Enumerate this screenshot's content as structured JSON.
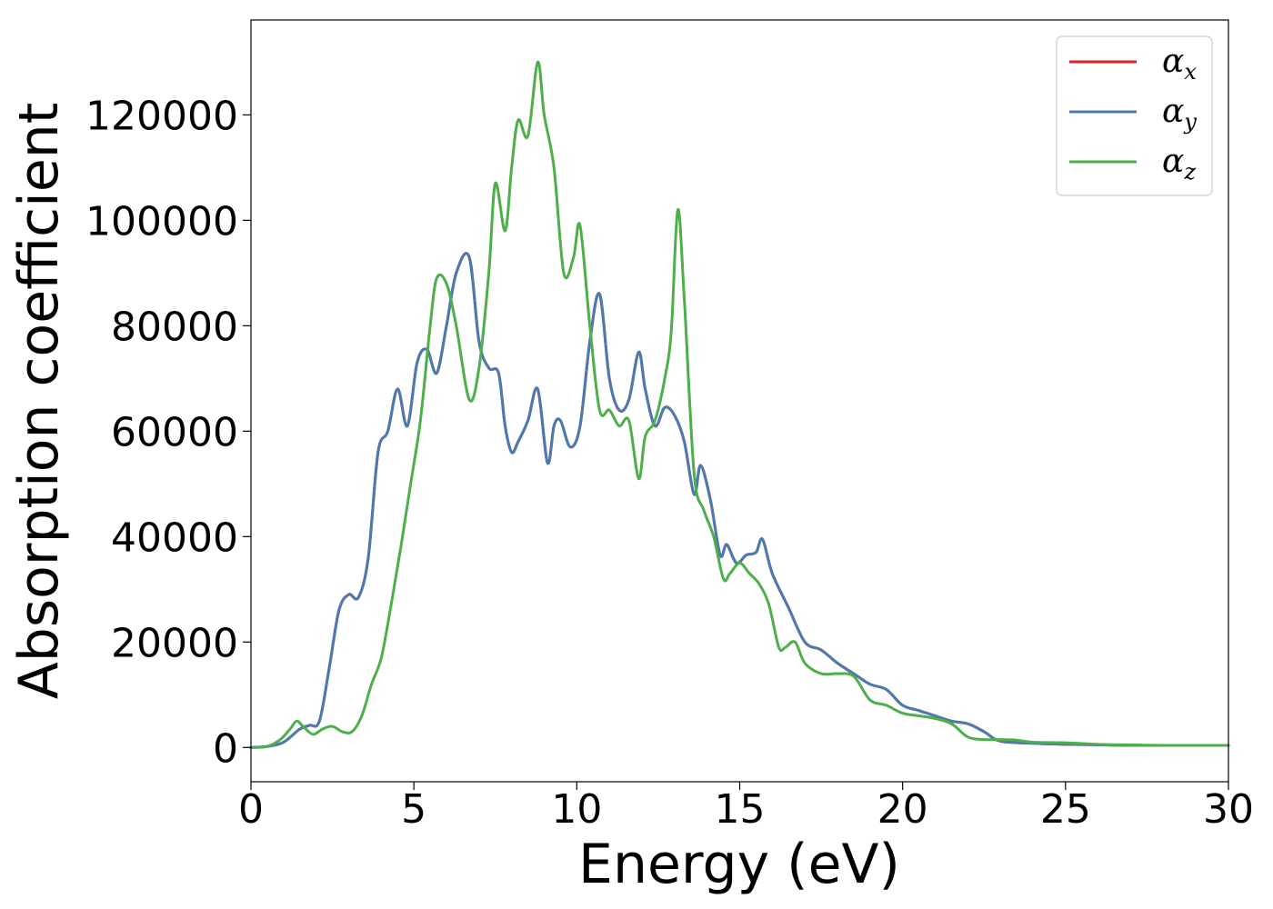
{
  "chart_data": {
    "type": "line",
    "xlabel": "Energy (eV)",
    "ylabel": "Absorption coefficient",
    "xlim": [
      0,
      30
    ],
    "ylim": [
      -6500,
      138000
    ],
    "xticks": [
      0,
      5,
      10,
      15,
      20,
      25,
      30
    ],
    "yticks": [
      0,
      20000,
      40000,
      60000,
      80000,
      100000,
      120000
    ],
    "xtick_labels": [
      "0",
      "5",
      "10",
      "15",
      "20",
      "25",
      "30"
    ],
    "ytick_labels": [
      "0",
      "20000",
      "40000",
      "60000",
      "80000",
      "100000",
      "120000"
    ],
    "grid": false,
    "legend_position": "upper-right",
    "series": [
      {
        "name": "α",
        "subscript": "x",
        "color": "#e41a1c",
        "x": [
          0,
          0.5,
          1.0,
          1.5,
          1.8,
          2.1,
          2.4,
          2.7,
          3.0,
          3.3,
          3.6,
          3.9,
          4.2,
          4.5,
          4.8,
          5.1,
          5.4,
          5.7,
          6.0,
          6.3,
          6.7,
          7.0,
          7.3,
          7.6,
          7.8,
          8.0,
          8.2,
          8.5,
          8.8,
          9.1,
          9.3,
          9.5,
          9.8,
          10.1,
          10.4,
          10.7,
          11.0,
          11.3,
          11.6,
          11.9,
          12.1,
          12.4,
          12.7,
          13.0,
          13.3,
          13.6,
          13.8,
          14.1,
          14.4,
          14.6,
          14.9,
          15.2,
          15.5,
          15.7,
          16.0,
          16.5,
          17.0,
          17.5,
          18.0,
          18.5,
          19.0,
          19.5,
          20.0,
          20.5,
          21.0,
          21.5,
          22.0,
          22.5,
          23.0,
          24.0,
          25.0,
          26.0,
          27.0,
          28.0,
          29.0,
          30.0
        ],
        "values": [
          0,
          200,
          1000,
          3500,
          4200,
          5000,
          15000,
          26000,
          29000,
          28500,
          36000,
          56000,
          60000,
          68000,
          61000,
          73000,
          75500,
          71000,
          80000,
          90000,
          93000,
          77000,
          72000,
          71000,
          61000,
          56000,
          58000,
          62000,
          68000,
          54000,
          61000,
          62000,
          57000,
          61000,
          77000,
          86000,
          70000,
          64000,
          66000,
          75000,
          68000,
          61000,
          64500,
          63000,
          58000,
          48000,
          53500,
          47000,
          36500,
          38500,
          35000,
          36500,
          37000,
          39500,
          33000,
          26500,
          20000,
          18500,
          16000,
          14000,
          12000,
          11000,
          8000,
          7000,
          6000,
          5000,
          4500,
          3000,
          1200,
          800,
          600,
          500,
          400,
          400,
          400,
          400
        ]
      },
      {
        "name": "α",
        "subscript": "y",
        "color": "#4a7bb0",
        "x": [
          0,
          0.5,
          1.0,
          1.5,
          1.8,
          2.1,
          2.4,
          2.7,
          3.0,
          3.3,
          3.6,
          3.9,
          4.2,
          4.5,
          4.8,
          5.1,
          5.4,
          5.7,
          6.0,
          6.3,
          6.7,
          7.0,
          7.3,
          7.6,
          7.8,
          8.0,
          8.2,
          8.5,
          8.8,
          9.1,
          9.3,
          9.5,
          9.8,
          10.1,
          10.4,
          10.7,
          11.0,
          11.3,
          11.6,
          11.9,
          12.1,
          12.4,
          12.7,
          13.0,
          13.3,
          13.6,
          13.8,
          14.1,
          14.4,
          14.6,
          14.9,
          15.2,
          15.5,
          15.7,
          16.0,
          16.5,
          17.0,
          17.5,
          18.0,
          18.5,
          19.0,
          19.5,
          20.0,
          20.5,
          21.0,
          21.5,
          22.0,
          22.5,
          23.0,
          24.0,
          25.0,
          26.0,
          27.0,
          28.0,
          29.0,
          30.0
        ],
        "values": [
          0,
          200,
          1000,
          3500,
          4200,
          5000,
          15000,
          26000,
          29000,
          28500,
          36000,
          56000,
          60000,
          68000,
          61000,
          73000,
          75500,
          71000,
          80000,
          90000,
          93000,
          77000,
          72000,
          71000,
          61000,
          56000,
          58000,
          62000,
          68000,
          54000,
          61000,
          62000,
          57000,
          61000,
          77000,
          86000,
          70000,
          64000,
          66000,
          75000,
          68000,
          61000,
          64500,
          63000,
          58000,
          48000,
          53500,
          47000,
          36500,
          38500,
          35000,
          36500,
          37000,
          39500,
          33000,
          26500,
          20000,
          18500,
          16000,
          14000,
          12000,
          11000,
          8000,
          7000,
          6000,
          5000,
          4500,
          3000,
          1200,
          800,
          600,
          500,
          400,
          400,
          400,
          400
        ]
      },
      {
        "name": "α",
        "subscript": "z",
        "color": "#4daf4a",
        "x": [
          0,
          0.5,
          0.9,
          1.2,
          1.4,
          1.6,
          1.9,
          2.2,
          2.5,
          2.8,
          3.1,
          3.4,
          3.7,
          4.0,
          4.3,
          4.6,
          4.9,
          5.2,
          5.5,
          5.7,
          6.0,
          6.3,
          6.7,
          7.0,
          7.3,
          7.5,
          7.8,
          8.0,
          8.2,
          8.5,
          8.8,
          9.0,
          9.3,
          9.6,
          9.9,
          10.1,
          10.4,
          10.7,
          11.0,
          11.3,
          11.6,
          11.9,
          12.1,
          12.4,
          12.7,
          12.9,
          13.1,
          13.3,
          13.6,
          13.9,
          14.2,
          14.5,
          14.7,
          15.0,
          15.3,
          15.6,
          15.9,
          16.2,
          16.4,
          16.7,
          17.0,
          17.5,
          18.0,
          18.5,
          19.0,
          19.5,
          20.0,
          20.5,
          21.0,
          21.5,
          22.0,
          22.5,
          23.0,
          23.5,
          24.0,
          25.0,
          26.0,
          27.0,
          28.0,
          29.0,
          30.0
        ],
        "values": [
          0,
          200,
          1500,
          3500,
          5000,
          4000,
          2500,
          3500,
          4000,
          3000,
          3000,
          6000,
          12000,
          17000,
          27000,
          38000,
          50000,
          62000,
          80000,
          89000,
          88000,
          80000,
          66000,
          72000,
          90000,
          107000,
          98000,
          110000,
          119000,
          116000,
          130000,
          120000,
          110000,
          90000,
          93000,
          99000,
          80000,
          64000,
          64000,
          61000,
          62000,
          51000,
          59000,
          62000,
          70000,
          79000,
          102000,
          85000,
          52000,
          45000,
          40000,
          32000,
          33000,
          35000,
          33000,
          31000,
          27000,
          19000,
          19000,
          20000,
          16000,
          14000,
          14000,
          13500,
          9000,
          8000,
          6500,
          6000,
          5500,
          4500,
          2000,
          1500,
          1500,
          1400,
          1000,
          900,
          600,
          500,
          400,
          400,
          400
        ]
      }
    ]
  }
}
